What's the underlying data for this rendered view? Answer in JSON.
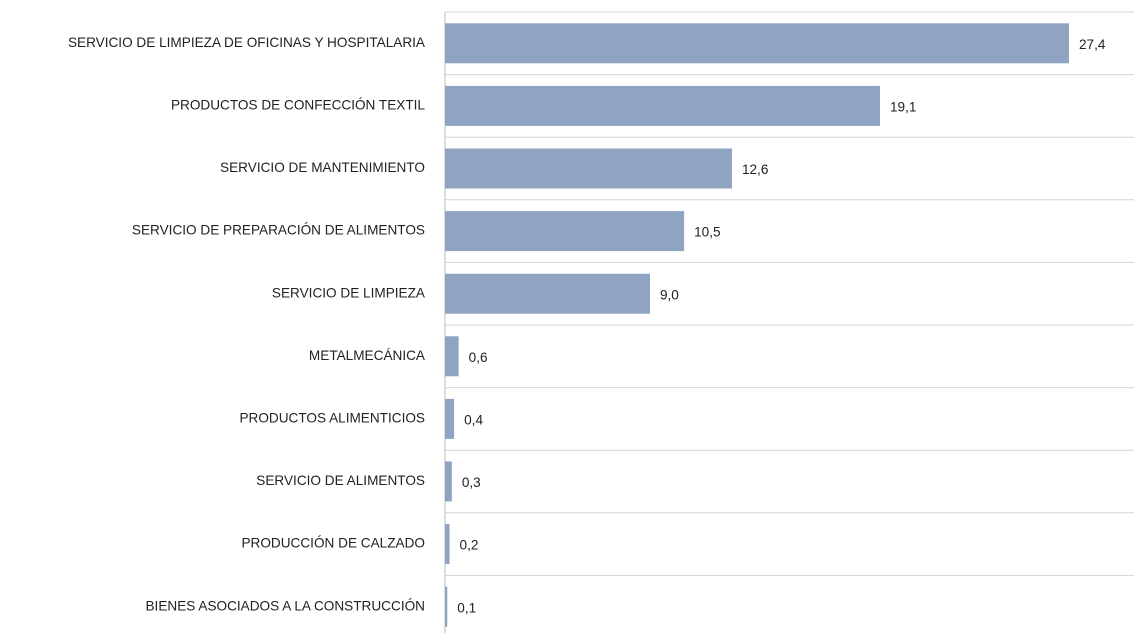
{
  "chart_data": {
    "type": "bar",
    "orientation": "horizontal",
    "categories": [
      "SERVICIO DE LIMPIEZA DE OFICINAS Y HOSPITALARIA",
      "PRODUCTOS DE CONFECCIÓN TEXTIL",
      "SERVICIO DE MANTENIMIENTO",
      "SERVICIO DE PREPARACIÓN DE ALIMENTOS",
      "SERVICIO DE LIMPIEZA",
      "METALMECÁNICA",
      "PRODUCTOS ALIMENTICIOS",
      "SERVICIO DE ALIMENTOS",
      "PRODUCCIÓN DE CALZADO",
      "BIENES ASOCIADOS A LA CONSTRUCCIÓN"
    ],
    "values": [
      27.4,
      19.1,
      12.6,
      10.5,
      9.0,
      0.6,
      0.4,
      0.3,
      0.2,
      0.1
    ],
    "value_labels": [
      "27,4",
      "19,1",
      "12,6",
      "10,5",
      "9,0",
      "0,6",
      "0,4",
      "0,3",
      "0,2",
      "0,1"
    ],
    "color": "#8ea4c2",
    "grid": true
  }
}
